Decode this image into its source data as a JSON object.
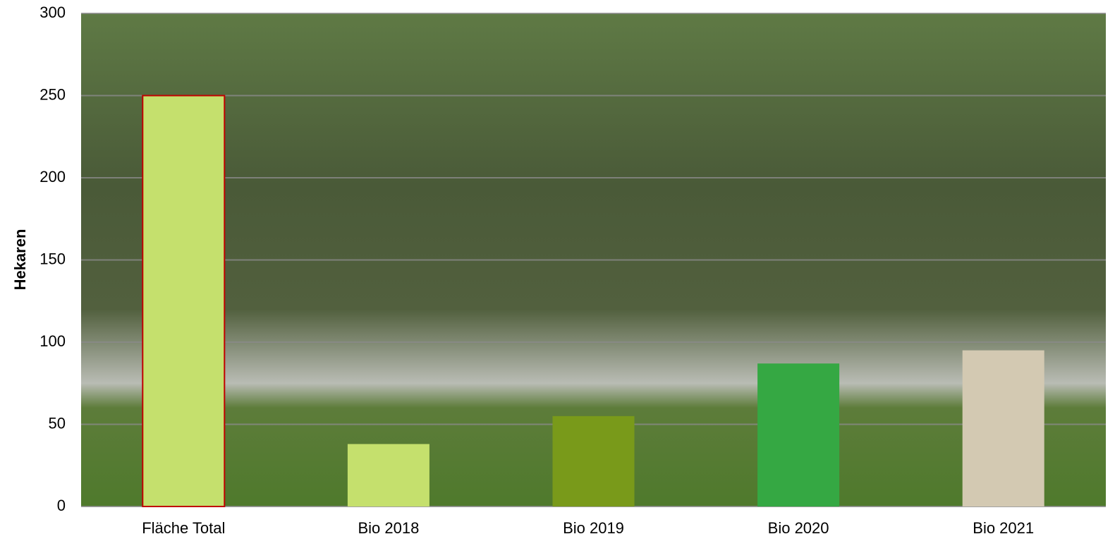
{
  "chart_data": {
    "type": "bar",
    "y_label": "Hekaren",
    "categories": [
      "Fläche Total",
      "Bio 2018",
      "Bio 2019",
      "Bio 2020",
      "Bio 2021"
    ],
    "values": [
      250,
      38,
      55,
      87,
      95
    ],
    "colors": [
      "#c5e06d",
      "#c5e06d",
      "#799a1a",
      "#35a843",
      "#d3c9b2"
    ],
    "edgecolors": [
      "#c00000",
      "none",
      "none",
      "none",
      "none"
    ],
    "ylim": [
      0,
      300
    ],
    "yticks": [
      0,
      50,
      100,
      150,
      200,
      250,
      300
    ],
    "grid": true
  }
}
